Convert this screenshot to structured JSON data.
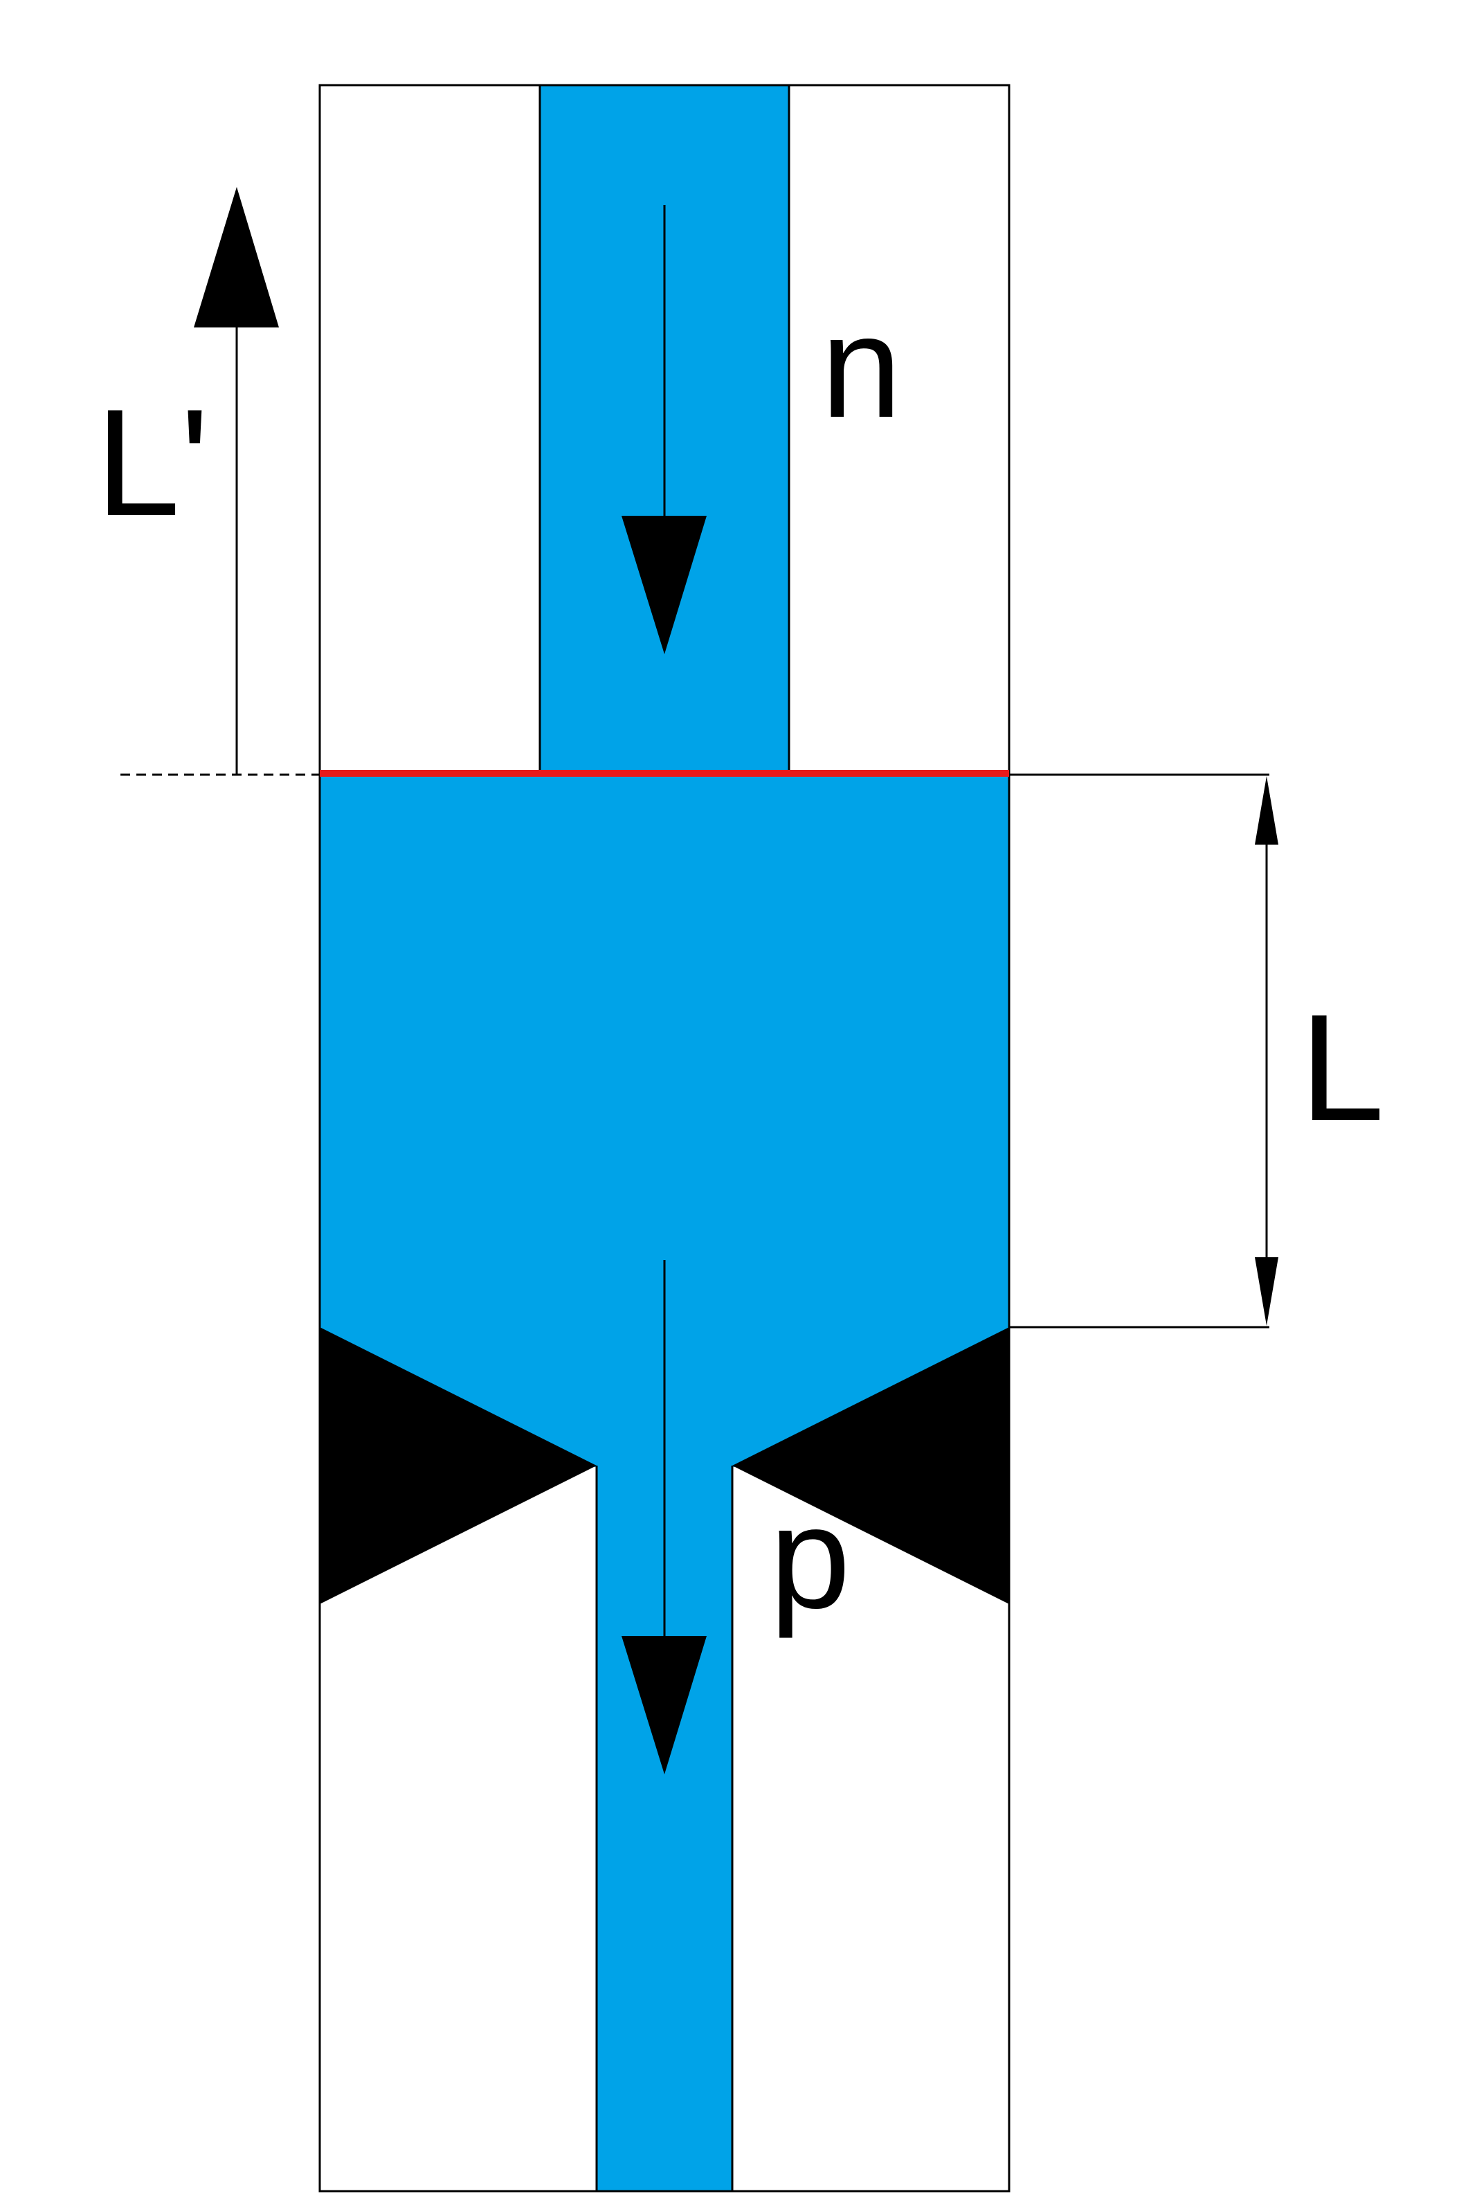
{
  "labels": {
    "top_flow": "n",
    "bottom_flow": "p",
    "left_length": "L'",
    "right_length": "L"
  },
  "colors": {
    "fluid": "#00A3E8",
    "interface_line": "#E81A1A",
    "stroke": "#000000",
    "wedge": "#000000",
    "background": "#FFFFFF"
  }
}
